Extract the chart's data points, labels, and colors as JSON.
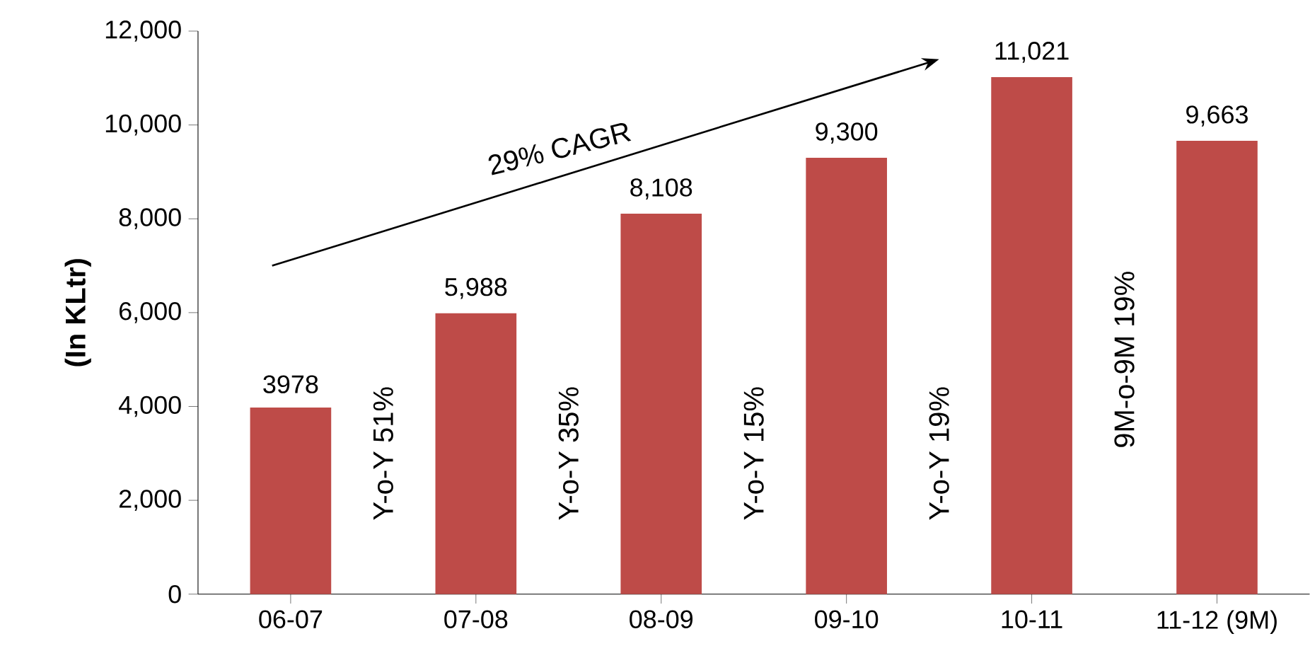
{
  "chart_data": {
    "type": "bar",
    "ylabel": "**(In KLtr)**",
    "categories": [
      "06-07",
      "07-08",
      "08-09",
      "09-10",
      "10-11",
      "11-12 (9M)"
    ],
    "values": [
      3978,
      5988,
      8108,
      9300,
      11021,
      9663
    ],
    "value_labels": [
      "3978",
      "5,988",
      "8,108",
      "9,300",
      "11,021",
      "9,663"
    ],
    "color": "#be4b48",
    "ylim": [
      0,
      12000
    ],
    "yticks": [
      0,
      {
        "value": 2000,
        "label": "2,000"
      },
      {
        "value": 4000,
        "label": "4,000"
      },
      {
        "value": 6000,
        "label": "6,000"
      },
      {
        "value": 8000,
        "label": "8,000"
      },
      {
        "value": 10000,
        "label": "10,000"
      },
      {
        "value": 12000,
        "label": "12,000"
      }
    ],
    "annotations": [
      "29% CAGR",
      "Y-o-Y    51%",
      "Y-o-Y    35%",
      "Y-o-Y    15%",
      "Y-o-Y    19%",
      "9M-o-9M  19%"
    ],
    "grid": false
  }
}
